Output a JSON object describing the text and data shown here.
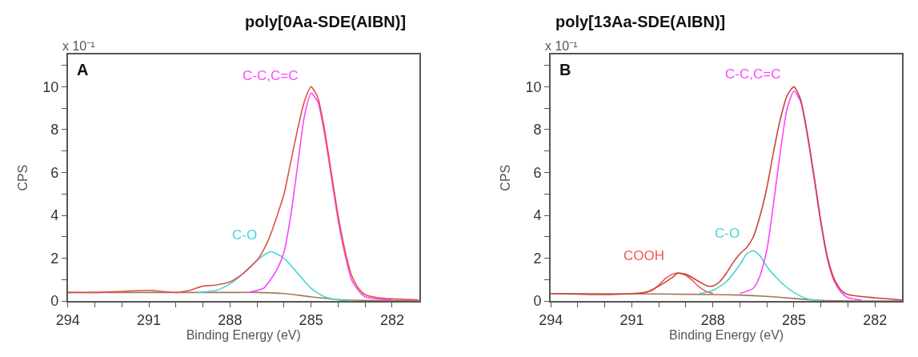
{
  "chart_data": [
    {
      "type": "line",
      "title": "poly[0Aa-SDE(AIBN)]",
      "xlabel": "Binding Energy (eV)",
      "ylabel": "CPS",
      "annotations": [
        "A",
        "x 10⁻¹"
      ],
      "xlim": [
        294,
        281
      ],
      "ylim": [
        0,
        11.5
      ],
      "legend": false,
      "xticks": [
        294,
        {
          "value": 293,
          "label": null
        },
        {
          "value": 292,
          "label": null
        },
        291,
        {
          "value": 290,
          "label": null
        },
        {
          "value": 289,
          "label": null
        },
        288,
        {
          "value": 287,
          "label": null
        },
        {
          "value": 286,
          "label": null
        },
        285,
        {
          "value": 284,
          "label": null
        },
        {
          "value": 283,
          "label": null
        },
        282
      ],
      "yticks": [
        0,
        {
          "value": 1,
          "label": null
        },
        2,
        {
          "value": 3,
          "label": null
        },
        4,
        {
          "value": 5,
          "label": null
        },
        6,
        {
          "value": 7,
          "label": null
        },
        8,
        {
          "value": 9,
          "label": null
        },
        10,
        {
          "value": 11,
          "label": null
        }
      ],
      "series": [
        {
          "color": "#a07a5a",
          "x": [
            294,
            290,
            288,
            287,
            286,
            285,
            284,
            283,
            281
          ],
          "values": [
            0.4,
            0.4,
            0.4,
            0.4,
            0.35,
            0.2,
            0.07,
            0.03,
            0
          ]
        },
        {
          "name": "C-O",
          "color": "#44d4d4",
          "x": [
            289.2,
            288.5,
            288,
            287.5,
            287,
            286.5,
            286,
            285.5,
            285,
            284.5,
            284,
            283.5
          ],
          "values": [
            0.4,
            0.5,
            0.8,
            1.3,
            1.9,
            2.3,
            2.0,
            1.3,
            0.6,
            0.2,
            0.05,
            0
          ]
        },
        {
          "name": "C-C,C=C",
          "color": "#ff44ff",
          "x": [
            287.3,
            286.75,
            286.5,
            286.25,
            286,
            285.75,
            285.5,
            285.25,
            285,
            284.75,
            284.5,
            284.25,
            284,
            283.75,
            283.5,
            283.25,
            283,
            282.5,
            282
          ],
          "values": [
            0.4,
            0.6,
            1.0,
            1.5,
            2.3,
            4.0,
            6.3,
            8.6,
            9.7,
            9.3,
            7.8,
            5.8,
            3.8,
            2.2,
            1.0,
            0.5,
            0.2,
            0.1,
            0.05
          ]
        },
        {
          "color": "#e0524a",
          "x": [
            294,
            293,
            292,
            291,
            290,
            289.5,
            289,
            288.5,
            288,
            287.5,
            287,
            286.75,
            286.5,
            286.25,
            286,
            285.75,
            285.5,
            285.25,
            285,
            284.75,
            284.5,
            284.25,
            284,
            283.75,
            283.5,
            283.25,
            283,
            282.5,
            282,
            281
          ],
          "values": [
            0.4,
            0.4,
            0.45,
            0.5,
            0.4,
            0.5,
            0.7,
            0.75,
            0.9,
            1.3,
            1.9,
            2.4,
            3.1,
            4.0,
            5.0,
            6.5,
            8.0,
            9.3,
            10.0,
            9.5,
            8.0,
            6.0,
            4.0,
            2.4,
            1.2,
            0.6,
            0.3,
            0.15,
            0.1,
            0.05
          ]
        }
      ]
    },
    {
      "type": "line",
      "title": "poly[13Aa-SDE(AIBN)]",
      "xlabel": "Binding Energy (eV)",
      "ylabel": "CPS",
      "annotations": [
        "B",
        "x 10⁻¹"
      ],
      "xlim": [
        294,
        281
      ],
      "ylim": [
        0,
        11.5
      ],
      "legend": false,
      "xticks": [
        294,
        {
          "value": 293,
          "label": null
        },
        {
          "value": 292,
          "label": null
        },
        291,
        {
          "value": 290,
          "label": null
        },
        {
          "value": 289,
          "label": null
        },
        288,
        {
          "value": 287,
          "label": null
        },
        {
          "value": 286,
          "label": null
        },
        285,
        {
          "value": 284,
          "label": null
        },
        {
          "value": 283,
          "label": null
        },
        282
      ],
      "yticks": [
        0,
        {
          "value": 1,
          "label": null
        },
        2,
        {
          "value": 3,
          "label": null
        },
        4,
        {
          "value": 5,
          "label": null
        },
        6,
        {
          "value": 7,
          "label": null
        },
        8,
        {
          "value": 9,
          "label": null
        },
        10,
        {
          "value": 11,
          "label": null
        }
      ],
      "series": [
        {
          "color": "#a07a5a",
          "x": [
            294,
            290,
            288,
            287,
            286,
            285,
            284,
            281
          ],
          "values": [
            0.35,
            0.33,
            0.3,
            0.28,
            0.22,
            0.12,
            0.03,
            0
          ]
        },
        {
          "name": "COOH",
          "color": "#f0584c",
          "x": [
            290.7,
            290.25,
            290,
            289.75,
            289.5,
            289.3,
            289,
            288.75,
            288.5,
            288.25,
            288
          ],
          "values": [
            0.35,
            0.5,
            0.75,
            1.05,
            1.25,
            1.3,
            1.2,
            0.95,
            0.65,
            0.45,
            0.35
          ]
        },
        {
          "name": "C-O",
          "color": "#44d4d4",
          "x": [
            288.5,
            288,
            287.5,
            287,
            286.75,
            286.5,
            286.25,
            286,
            285.5,
            285,
            284.5,
            284
          ],
          "values": [
            0.35,
            0.5,
            0.9,
            1.7,
            2.2,
            2.35,
            2.1,
            1.6,
            0.9,
            0.4,
            0.1,
            0
          ]
        },
        {
          "name": "C-C,C=C",
          "color": "#ff44ff",
          "x": [
            287,
            286.5,
            286.25,
            286,
            285.75,
            285.5,
            285.25,
            285,
            284.75,
            284.5,
            284.25,
            284,
            283.75,
            283.5,
            283.25,
            283,
            282.5
          ],
          "values": [
            0.35,
            0.6,
            1.2,
            2.4,
            4.6,
            7.0,
            9.0,
            9.8,
            9.3,
            7.7,
            5.7,
            3.6,
            1.9,
            0.9,
            0.4,
            0.15,
            0.05
          ]
        },
        {
          "color": "#c8443c",
          "x": [
            294,
            292,
            291,
            290.5,
            290,
            289.5,
            289.3,
            289,
            288.5,
            288.2,
            288,
            287.75,
            287.5,
            287.25,
            287,
            286.75,
            286.5,
            286.25,
            286,
            285.75,
            285.5,
            285.25,
            285,
            284.75,
            284.5,
            284.25,
            284,
            283.75,
            283.5,
            283.25,
            283,
            282,
            281
          ],
          "values": [
            0.35,
            0.3,
            0.35,
            0.4,
            0.7,
            1.1,
            1.3,
            1.25,
            0.9,
            0.7,
            0.7,
            0.9,
            1.3,
            1.8,
            2.2,
            2.5,
            3.0,
            4.0,
            5.3,
            7.0,
            8.5,
            9.6,
            10.0,
            9.4,
            7.8,
            5.8,
            3.7,
            2.0,
            1.0,
            0.5,
            0.3,
            0.15,
            0.05
          ]
        }
      ]
    }
  ]
}
